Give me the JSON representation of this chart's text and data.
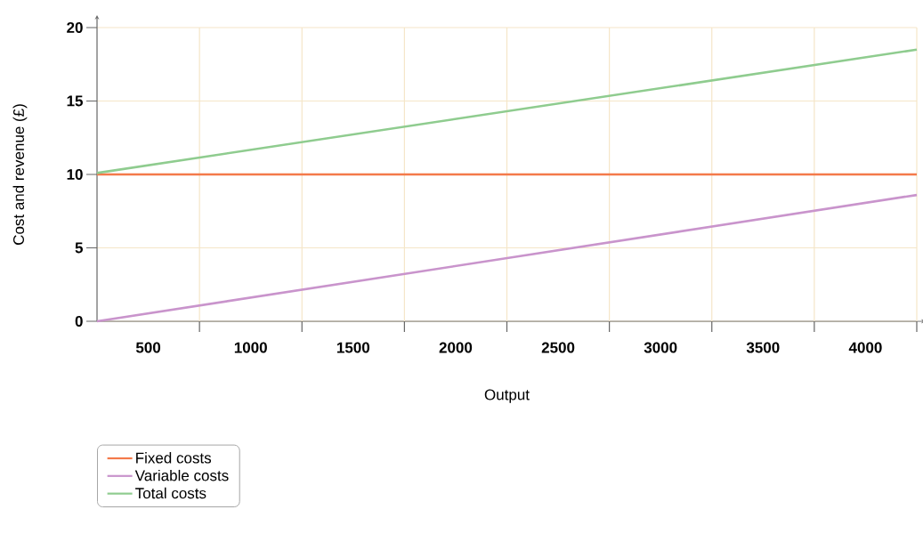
{
  "chart_data": {
    "type": "line",
    "xlabel": "Output",
    "ylabel": "Cost and revenue (£)",
    "xlim": [
      250,
      4250
    ],
    "ylim": [
      0,
      20
    ],
    "xticks": [
      500,
      1000,
      1500,
      2000,
      2500,
      3000,
      3500,
      4000,
      {
        "value": 750,
        "label": null
      },
      {
        "value": 1250,
        "label": null
      },
      {
        "value": 1750,
        "label": null
      },
      {
        "value": 2250,
        "label": null
      },
      {
        "value": 2750,
        "label": null
      },
      {
        "value": 3250,
        "label": null
      },
      {
        "value": 3750,
        "label": null
      },
      {
        "value": 4250,
        "label": null
      }
    ],
    "yticks": [
      0,
      5,
      10,
      15,
      20
    ],
    "x": [
      250,
      4250
    ],
    "series": [
      {
        "name": "Fixed costs",
        "color": "#f47a4a",
        "values": [
          10,
          10
        ]
      },
      {
        "name": "Variable costs",
        "color": "#c994cc",
        "values": [
          0,
          8.6
        ]
      },
      {
        "name": "Total costs",
        "color": "#8fcc8f",
        "values": [
          10.1,
          18.5
        ]
      }
    ],
    "grid": true,
    "legend": "bottom left",
    "marker": "none",
    "line_style": "solid"
  }
}
